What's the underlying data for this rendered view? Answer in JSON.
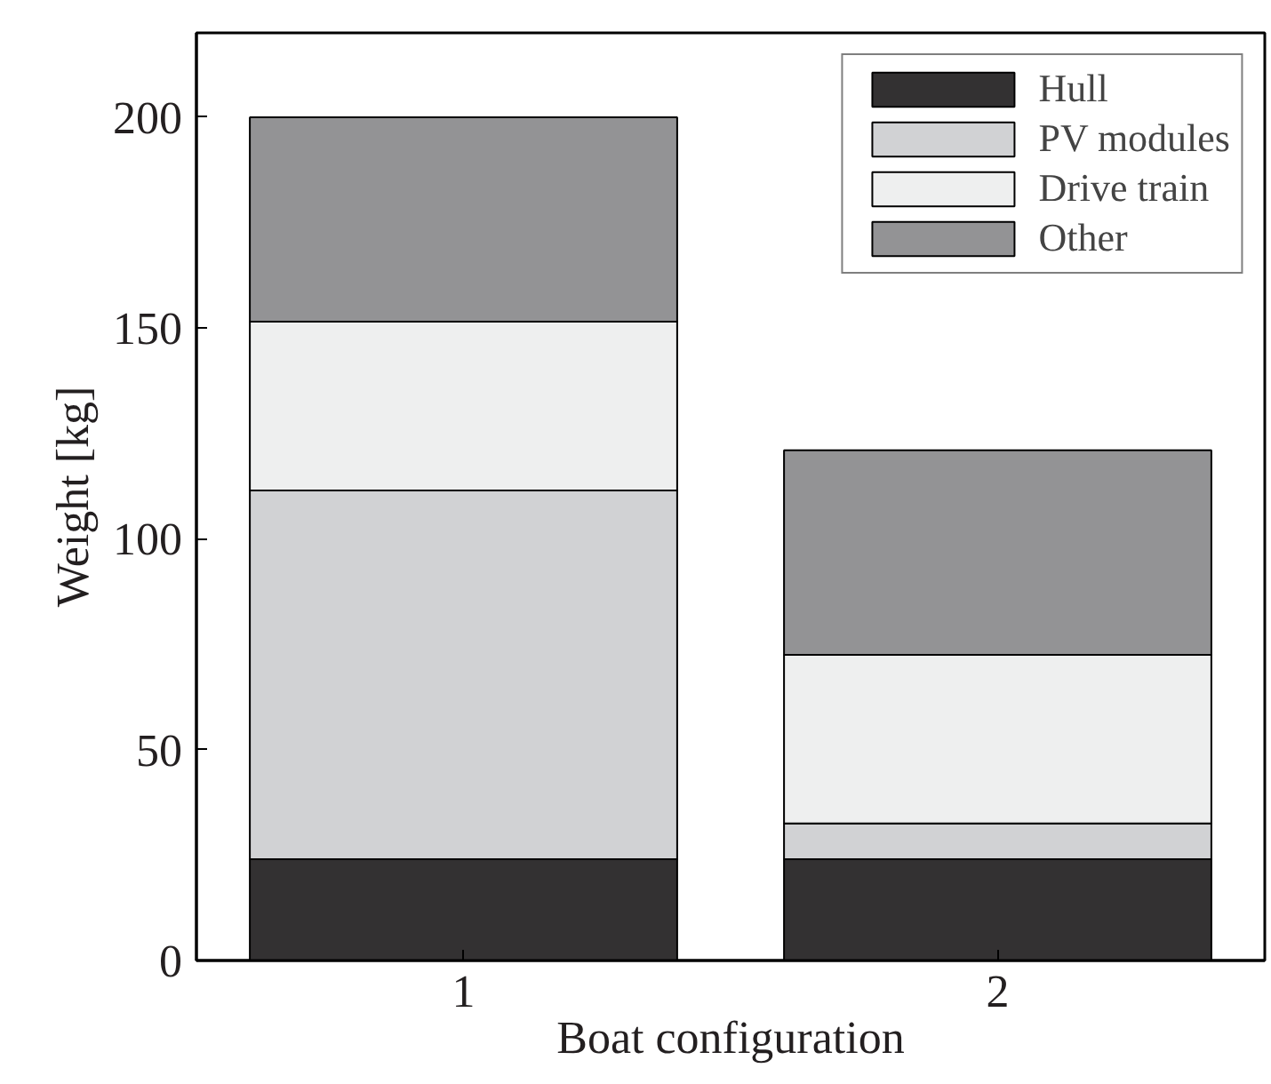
{
  "chart_data": {
    "type": "bar",
    "stacked": true,
    "xlabel": "Boat configuration",
    "ylabel": "Weight [kg]",
    "categories": [
      "1",
      "2"
    ],
    "series": [
      {
        "name": "Hull",
        "color": "#333132",
        "values": [
          24,
          24
        ]
      },
      {
        "name": "PV modules",
        "color": "#d1d2d4",
        "values": [
          87.5,
          8.5
        ]
      },
      {
        "name": "Drive train",
        "color": "#eeefef",
        "values": [
          40,
          40
        ]
      },
      {
        "name": "Other",
        "color": "#939395",
        "values": [
          48.5,
          48.5
        ]
      }
    ],
    "ylim": [
      0,
      220
    ],
    "yticks": [
      0,
      50,
      100,
      150,
      200
    ],
    "grid": false,
    "legend": "top right"
  }
}
